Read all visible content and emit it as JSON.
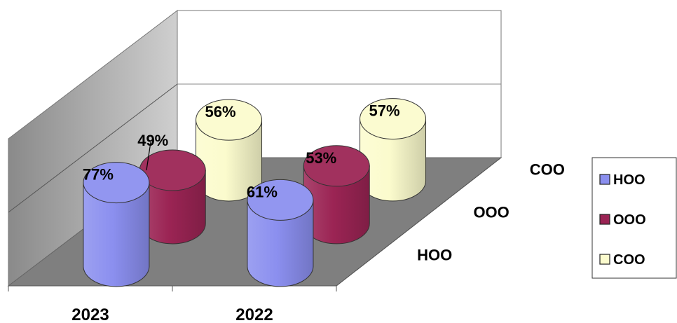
{
  "chart_data": {
    "type": "bar",
    "shape": "3d-cylinder",
    "categories": [
      "2023",
      "2022"
    ],
    "depth_labels": [
      "HOO",
      "OOO",
      "COO"
    ],
    "series": [
      {
        "name": "HOO",
        "values": [
          77,
          61
        ],
        "labels": [
          "77%",
          "61%"
        ],
        "color": "#8b8fef"
      },
      {
        "name": "OOO",
        "values": [
          49,
          53
        ],
        "labels": [
          "49%",
          "53%"
        ],
        "color": "#9b2454"
      },
      {
        "name": "COO",
        "values": [
          56,
          57
        ],
        "labels": [
          "56%",
          "57%"
        ],
        "color": "#fbfbcd"
      }
    ],
    "legend_position": "right",
    "title": "",
    "xlabel": "",
    "ylabel": ""
  }
}
